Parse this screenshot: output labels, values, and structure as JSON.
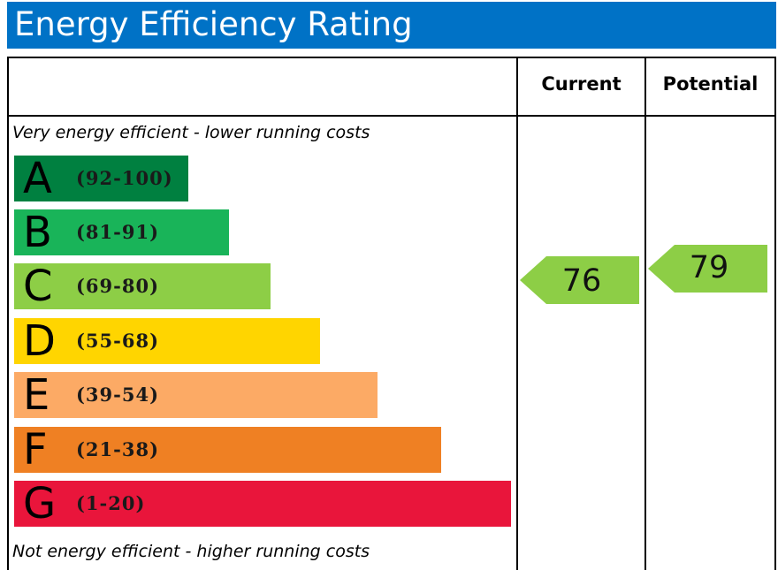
{
  "title": "Energy Efficiency Rating",
  "header": {
    "current_label": "Current",
    "potential_label": "Potential"
  },
  "notes": {
    "top": "Very energy efficient - lower running costs",
    "bottom": "Not energy efficient - higher running costs"
  },
  "chart_data": {
    "type": "bar",
    "bands": [
      {
        "letter": "A",
        "range": "(92-100)",
        "color": "#008040"
      },
      {
        "letter": "B",
        "range": "(81-91)",
        "color": "#19b459"
      },
      {
        "letter": "C",
        "range": "(69-80)",
        "color": "#8dce46"
      },
      {
        "letter": "D",
        "range": "(55-68)",
        "color": "#ffd500"
      },
      {
        "letter": "E",
        "range": "(39-54)",
        "color": "#fcaa65"
      },
      {
        "letter": "F",
        "range": "(21-38)",
        "color": "#ef8023"
      },
      {
        "letter": "G",
        "range": "(1-20)",
        "color": "#e9153b"
      }
    ],
    "current": {
      "value": "76",
      "band": "C"
    },
    "potential": {
      "value": "79",
      "band": "C"
    }
  }
}
